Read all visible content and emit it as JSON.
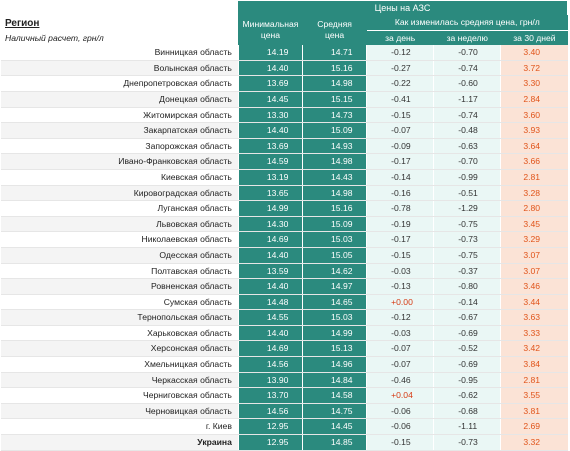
{
  "title": "Цены на АЗС",
  "header": {
    "region": "Регион",
    "payment": "Наличный расчет, грн/л",
    "min_price": [
      "Минимальная",
      "цена"
    ],
    "avg_price": [
      "Средняя",
      "цена"
    ],
    "change": "Как изменилась средняя цена, грн/л",
    "day": "за день",
    "week": "за неделю",
    "days30": "за 30 дней"
  },
  "colors": {
    "teal": "#2b8a7e",
    "orange": "#e0541a",
    "light_teal": "#eaf7f5",
    "light_orange": "#fbe3d6"
  },
  "rows": [
    {
      "region": "Винницкая область",
      "min": "14.19",
      "avg": "14.71",
      "day": "-0.12",
      "week": "-0.70",
      "d30": "3.40"
    },
    {
      "region": "Волынская область",
      "min": "14.40",
      "avg": "15.16",
      "day": "-0.27",
      "week": "-0.74",
      "d30": "3.72"
    },
    {
      "region": "Днепропетровская область",
      "min": "13.69",
      "avg": "14.98",
      "day": "-0.22",
      "week": "-0.60",
      "d30": "3.30"
    },
    {
      "region": "Донецкая область",
      "min": "14.45",
      "avg": "15.15",
      "day": "-0.41",
      "week": "-1.17",
      "d30": "2.84"
    },
    {
      "region": "Житомирская область",
      "min": "13.30",
      "avg": "14.73",
      "day": "-0.15",
      "week": "-0.74",
      "d30": "3.60"
    },
    {
      "region": "Закарпатская область",
      "min": "14.40",
      "avg": "15.09",
      "day": "-0.07",
      "week": "-0.48",
      "d30": "3.93"
    },
    {
      "region": "Запорожская область",
      "min": "13.69",
      "avg": "14.93",
      "day": "-0.09",
      "week": "-0.63",
      "d30": "3.64"
    },
    {
      "region": "Ивано-Франковская область",
      "min": "14.59",
      "avg": "14.98",
      "day": "-0.17",
      "week": "-0.70",
      "d30": "3.66"
    },
    {
      "region": "Киевская область",
      "min": "13.19",
      "avg": "14.43",
      "day": "-0.14",
      "week": "-0.99",
      "d30": "2.81"
    },
    {
      "region": "Кировоградская область",
      "min": "13.65",
      "avg": "14.98",
      "day": "-0.16",
      "week": "-0.51",
      "d30": "3.28"
    },
    {
      "region": "Луганская область",
      "min": "14.99",
      "avg": "15.16",
      "day": "-0.78",
      "week": "-1.29",
      "d30": "2.80"
    },
    {
      "region": "Львовская область",
      "min": "14.30",
      "avg": "15.09",
      "day": "-0.19",
      "week": "-0.75",
      "d30": "3.45"
    },
    {
      "region": "Николаевская область",
      "min": "14.69",
      "avg": "15.03",
      "day": "-0.17",
      "week": "-0.73",
      "d30": "3.29"
    },
    {
      "region": "Одесская область",
      "min": "14.40",
      "avg": "15.05",
      "day": "-0.15",
      "week": "-0.75",
      "d30": "3.07"
    },
    {
      "region": "Полтавская область",
      "min": "13.59",
      "avg": "14.62",
      "day": "-0.03",
      "week": "-0.37",
      "d30": "3.07"
    },
    {
      "region": "Ровненская область",
      "min": "14.40",
      "avg": "14.97",
      "day": "-0.13",
      "week": "-0.80",
      "d30": "3.46"
    },
    {
      "region": "Сумская область",
      "min": "14.48",
      "avg": "14.65",
      "day": "+0.00",
      "week": "-0.14",
      "d30": "3.44"
    },
    {
      "region": "Тернопольская область",
      "min": "14.55",
      "avg": "15.03",
      "day": "-0.12",
      "week": "-0.67",
      "d30": "3.63"
    },
    {
      "region": "Харьковская область",
      "min": "14.40",
      "avg": "14.99",
      "day": "-0.03",
      "week": "-0.69",
      "d30": "3.33"
    },
    {
      "region": "Херсонская область",
      "min": "14.69",
      "avg": "15.13",
      "day": "-0.07",
      "week": "-0.52",
      "d30": "3.42"
    },
    {
      "region": "Хмельницкая область",
      "min": "14.56",
      "avg": "14.96",
      "day": "-0.07",
      "week": "-0.69",
      "d30": "3.84"
    },
    {
      "region": "Черкасская область",
      "min": "13.90",
      "avg": "14.84",
      "day": "-0.46",
      "week": "-0.95",
      "d30": "2.81"
    },
    {
      "region": "Черниговская область",
      "min": "13.70",
      "avg": "14.58",
      "day": "+0.04",
      "week": "-0.62",
      "d30": "3.55"
    },
    {
      "region": "Черновицкая область",
      "min": "14.56",
      "avg": "14.75",
      "day": "-0.06",
      "week": "-0.68",
      "d30": "3.81"
    },
    {
      "region": "г. Киев",
      "min": "12.95",
      "avg": "14.45",
      "day": "-0.06",
      "week": "-1.11",
      "d30": "2.69"
    },
    {
      "region": "Украина",
      "min": "12.95",
      "avg": "14.85",
      "day": "-0.15",
      "week": "-0.73",
      "d30": "3.32",
      "total": true
    }
  ]
}
